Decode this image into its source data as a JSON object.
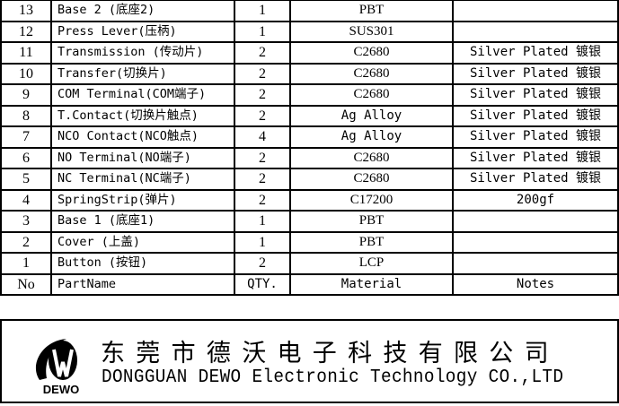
{
  "rows": [
    {
      "no": "13",
      "name": "Base 2 (底座2)",
      "qty": "1",
      "material": "PBT",
      "notes": ""
    },
    {
      "no": "12",
      "name": "Press Lever(压柄)",
      "qty": "1",
      "material": "SUS301",
      "notes": ""
    },
    {
      "no": "11",
      "name": "Transmission (传动片)",
      "qty": "2",
      "material": "C2680",
      "notes": "Silver Plated 镀银"
    },
    {
      "no": "10",
      "name": "Transfer(切换片)",
      "qty": "2",
      "material": "C2680",
      "notes": "Silver Plated 镀银"
    },
    {
      "no": "9",
      "name": "COM Terminal(COM端子)",
      "qty": "2",
      "material": "C2680",
      "notes": "Silver Plated 镀银"
    },
    {
      "no": "8",
      "name": "T.Contact(切换片触点)",
      "qty": "2",
      "material": "Ag Alloy",
      "notes": "Silver Plated 镀银"
    },
    {
      "no": "7",
      "name": "NCO Contact(NCO触点)",
      "qty": "4",
      "material": "Ag Alloy",
      "notes": "Silver Plated 镀银"
    },
    {
      "no": "6",
      "name": "NO Terminal(NO端子)",
      "qty": "2",
      "material": "C2680",
      "notes": "Silver Plated 镀银"
    },
    {
      "no": "5",
      "name": "NC Terminal(NC端子)",
      "qty": "2",
      "material": "C2680",
      "notes": "Silver Plated 镀银"
    },
    {
      "no": "4",
      "name": "SpringStrip(弹片)",
      "qty": "2",
      "material": "C17200",
      "notes": "200gf"
    },
    {
      "no": "3",
      "name": "Base 1  (底座1)",
      "qty": "1",
      "material": "PBT",
      "notes": ""
    },
    {
      "no": "2",
      "name": "Cover (上盖)",
      "qty": "1",
      "material": "PBT",
      "notes": ""
    },
    {
      "no": "1",
      "name": "Button (按钮)",
      "qty": "2",
      "material": "LCP",
      "notes": ""
    }
  ],
  "header": {
    "no": "No",
    "name": "PartName",
    "qty": "QTY.",
    "material": "Material",
    "notes": "Notes"
  },
  "footer": {
    "logo_text": "DEWO",
    "company_cn": "东莞市德沃电子科技有限公司",
    "company_en": "DONGGUAN DEWO Electronic Technology CO.,LTD"
  }
}
